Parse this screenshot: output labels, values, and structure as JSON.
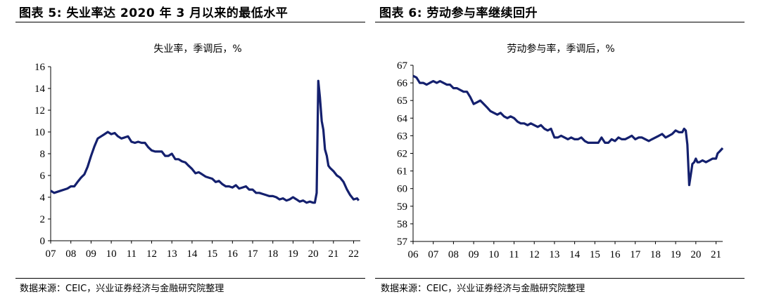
{
  "fig_left": {
    "title": "图表 5: 失业率达 2020 年 3 月以来的最低水平",
    "source": "数据来源：CEIC，兴业证券经济与金融研究院整理"
  },
  "fig_right": {
    "title": "图表 6: 劳动参与率继续回升",
    "source": "数据来源：CEIC，兴业证券经济与金融研究院整理"
  },
  "colors": {
    "line": "#14206e",
    "axis": "#000000"
  },
  "chart_data": [
    {
      "type": "line",
      "title": "失业率，季调后，%",
      "xlabel": "",
      "ylabel": "",
      "x_tick_labels": [
        "07",
        "08",
        "09",
        "10",
        "11",
        "12",
        "13",
        "14",
        "15",
        "16",
        "17",
        "18",
        "19",
        "20",
        "21",
        "22"
      ],
      "y_tick_labels": [
        "0",
        "2",
        "4",
        "6",
        "8",
        "10",
        "12",
        "14",
        "16"
      ],
      "xlim": [
        2007.0,
        2022.33
      ],
      "ylim": [
        0,
        16
      ],
      "grid": false,
      "legend": "none",
      "series": [
        {
          "name": "",
          "points": [
            [
              2007.0,
              4.6
            ],
            [
              2007.17,
              4.4
            ],
            [
              2007.33,
              4.5
            ],
            [
              2007.5,
              4.6
            ],
            [
              2007.67,
              4.7
            ],
            [
              2007.83,
              4.8
            ],
            [
              2008.0,
              5.0
            ],
            [
              2008.17,
              5.0
            ],
            [
              2008.33,
              5.4
            ],
            [
              2008.5,
              5.8
            ],
            [
              2008.67,
              6.1
            ],
            [
              2008.83,
              6.8
            ],
            [
              2009.0,
              7.8
            ],
            [
              2009.17,
              8.7
            ],
            [
              2009.33,
              9.4
            ],
            [
              2009.5,
              9.6
            ],
            [
              2009.67,
              9.8
            ],
            [
              2009.83,
              10.0
            ],
            [
              2010.0,
              9.8
            ],
            [
              2010.17,
              9.9
            ],
            [
              2010.33,
              9.6
            ],
            [
              2010.5,
              9.4
            ],
            [
              2010.67,
              9.5
            ],
            [
              2010.83,
              9.6
            ],
            [
              2011.0,
              9.1
            ],
            [
              2011.17,
              9.0
            ],
            [
              2011.33,
              9.1
            ],
            [
              2011.5,
              9.0
            ],
            [
              2011.67,
              9.0
            ],
            [
              2011.83,
              8.6
            ],
            [
              2012.0,
              8.3
            ],
            [
              2012.17,
              8.2
            ],
            [
              2012.33,
              8.2
            ],
            [
              2012.5,
              8.2
            ],
            [
              2012.67,
              7.8
            ],
            [
              2012.83,
              7.8
            ],
            [
              2013.0,
              8.0
            ],
            [
              2013.17,
              7.5
            ],
            [
              2013.33,
              7.5
            ],
            [
              2013.5,
              7.3
            ],
            [
              2013.67,
              7.2
            ],
            [
              2013.83,
              6.9
            ],
            [
              2014.0,
              6.6
            ],
            [
              2014.17,
              6.2
            ],
            [
              2014.33,
              6.3
            ],
            [
              2014.5,
              6.1
            ],
            [
              2014.67,
              5.9
            ],
            [
              2014.83,
              5.8
            ],
            [
              2015.0,
              5.7
            ],
            [
              2015.17,
              5.4
            ],
            [
              2015.33,
              5.5
            ],
            [
              2015.5,
              5.2
            ],
            [
              2015.67,
              5.0
            ],
            [
              2015.83,
              5.0
            ],
            [
              2016.0,
              4.9
            ],
            [
              2016.17,
              5.1
            ],
            [
              2016.33,
              4.8
            ],
            [
              2016.5,
              4.9
            ],
            [
              2016.67,
              5.0
            ],
            [
              2016.83,
              4.7
            ],
            [
              2017.0,
              4.7
            ],
            [
              2017.17,
              4.4
            ],
            [
              2017.33,
              4.4
            ],
            [
              2017.5,
              4.3
            ],
            [
              2017.67,
              4.2
            ],
            [
              2017.83,
              4.1
            ],
            [
              2018.0,
              4.1
            ],
            [
              2018.17,
              4.0
            ],
            [
              2018.33,
              3.8
            ],
            [
              2018.5,
              3.9
            ],
            [
              2018.67,
              3.7
            ],
            [
              2018.83,
              3.8
            ],
            [
              2019.0,
              4.0
            ],
            [
              2019.17,
              3.8
            ],
            [
              2019.33,
              3.6
            ],
            [
              2019.5,
              3.7
            ],
            [
              2019.67,
              3.5
            ],
            [
              2019.83,
              3.6
            ],
            [
              2020.0,
              3.5
            ],
            [
              2020.08,
              3.5
            ],
            [
              2020.17,
              4.4
            ],
            [
              2020.25,
              14.7
            ],
            [
              2020.33,
              13.2
            ],
            [
              2020.42,
              11.0
            ],
            [
              2020.5,
              10.2
            ],
            [
              2020.58,
              8.4
            ],
            [
              2020.67,
              7.8
            ],
            [
              2020.75,
              6.9
            ],
            [
              2020.83,
              6.7
            ],
            [
              2021.0,
              6.4
            ],
            [
              2021.17,
              6.0
            ],
            [
              2021.33,
              5.8
            ],
            [
              2021.5,
              5.4
            ],
            [
              2021.67,
              4.7
            ],
            [
              2021.83,
              4.2
            ],
            [
              2022.0,
              3.8
            ],
            [
              2022.17,
              3.9
            ],
            [
              2022.25,
              3.7
            ]
          ]
        }
      ]
    },
    {
      "type": "line",
      "title": "劳动参与率，季调后，%",
      "xlabel": "",
      "ylabel": "",
      "x_tick_labels": [
        "06",
        "07",
        "08",
        "09",
        "10",
        "11",
        "12",
        "13",
        "14",
        "15",
        "16",
        "17",
        "18",
        "19",
        "20",
        "21"
      ],
      "y_tick_labels": [
        "57",
        "58",
        "59",
        "60",
        "61",
        "62",
        "63",
        "64",
        "65",
        "66",
        "67"
      ],
      "xlim": [
        2006.0,
        2021.33
      ],
      "ylim": [
        57,
        67
      ],
      "grid": false,
      "legend": "none",
      "series": [
        {
          "name": "",
          "points": [
            [
              2006.0,
              66.4
            ],
            [
              2006.17,
              66.3
            ],
            [
              2006.33,
              66.0
            ],
            [
              2006.5,
              66.0
            ],
            [
              2006.67,
              65.9
            ],
            [
              2006.83,
              66.0
            ],
            [
              2007.0,
              66.1
            ],
            [
              2007.17,
              66.0
            ],
            [
              2007.33,
              66.1
            ],
            [
              2007.5,
              66.0
            ],
            [
              2007.67,
              65.9
            ],
            [
              2007.83,
              65.9
            ],
            [
              2008.0,
              65.7
            ],
            [
              2008.17,
              65.7
            ],
            [
              2008.33,
              65.6
            ],
            [
              2008.5,
              65.5
            ],
            [
              2008.67,
              65.5
            ],
            [
              2008.83,
              65.2
            ],
            [
              2009.0,
              64.8
            ],
            [
              2009.17,
              64.9
            ],
            [
              2009.33,
              65.0
            ],
            [
              2009.5,
              64.8
            ],
            [
              2009.67,
              64.6
            ],
            [
              2009.83,
              64.4
            ],
            [
              2010.0,
              64.3
            ],
            [
              2010.17,
              64.2
            ],
            [
              2010.33,
              64.3
            ],
            [
              2010.5,
              64.1
            ],
            [
              2010.67,
              64.0
            ],
            [
              2010.83,
              64.1
            ],
            [
              2011.0,
              64.0
            ],
            [
              2011.17,
              63.8
            ],
            [
              2011.33,
              63.7
            ],
            [
              2011.5,
              63.7
            ],
            [
              2011.67,
              63.6
            ],
            [
              2011.83,
              63.7
            ],
            [
              2012.0,
              63.6
            ],
            [
              2012.17,
              63.5
            ],
            [
              2012.33,
              63.6
            ],
            [
              2012.5,
              63.4
            ],
            [
              2012.67,
              63.3
            ],
            [
              2012.83,
              63.4
            ],
            [
              2013.0,
              62.9
            ],
            [
              2013.17,
              62.9
            ],
            [
              2013.33,
              63.0
            ],
            [
              2013.5,
              62.9
            ],
            [
              2013.67,
              62.8
            ],
            [
              2013.83,
              62.9
            ],
            [
              2014.0,
              62.8
            ],
            [
              2014.17,
              62.8
            ],
            [
              2014.33,
              62.9
            ],
            [
              2014.5,
              62.7
            ],
            [
              2014.67,
              62.6
            ],
            [
              2014.83,
              62.6
            ],
            [
              2015.0,
              62.6
            ],
            [
              2015.17,
              62.6
            ],
            [
              2015.33,
              62.9
            ],
            [
              2015.5,
              62.6
            ],
            [
              2015.67,
              62.6
            ],
            [
              2015.83,
              62.8
            ],
            [
              2016.0,
              62.7
            ],
            [
              2016.17,
              62.9
            ],
            [
              2016.33,
              62.8
            ],
            [
              2016.5,
              62.8
            ],
            [
              2016.67,
              62.9
            ],
            [
              2016.83,
              63.0
            ],
            [
              2017.0,
              62.8
            ],
            [
              2017.17,
              62.9
            ],
            [
              2017.33,
              62.9
            ],
            [
              2017.5,
              62.8
            ],
            [
              2017.67,
              62.7
            ],
            [
              2017.83,
              62.8
            ],
            [
              2018.0,
              62.9
            ],
            [
              2018.17,
              63.0
            ],
            [
              2018.33,
              63.1
            ],
            [
              2018.5,
              62.9
            ],
            [
              2018.67,
              63.0
            ],
            [
              2018.83,
              63.1
            ],
            [
              2019.0,
              63.3
            ],
            [
              2019.17,
              63.2
            ],
            [
              2019.33,
              63.2
            ],
            [
              2019.42,
              63.4
            ],
            [
              2019.5,
              63.3
            ],
            [
              2019.58,
              62.5
            ],
            [
              2019.67,
              60.2
            ],
            [
              2019.75,
              60.8
            ],
            [
              2019.83,
              61.4
            ],
            [
              2019.92,
              61.5
            ],
            [
              2020.0,
              61.7
            ],
            [
              2020.08,
              61.5
            ],
            [
              2020.17,
              61.5
            ],
            [
              2020.33,
              61.6
            ],
            [
              2020.5,
              61.5
            ],
            [
              2020.67,
              61.6
            ],
            [
              2020.83,
              61.7
            ],
            [
              2021.0,
              61.7
            ],
            [
              2021.08,
              62.0
            ],
            [
              2021.17,
              62.1
            ],
            [
              2021.25,
              62.2
            ],
            [
              2021.33,
              62.3
            ]
          ]
        }
      ]
    }
  ]
}
